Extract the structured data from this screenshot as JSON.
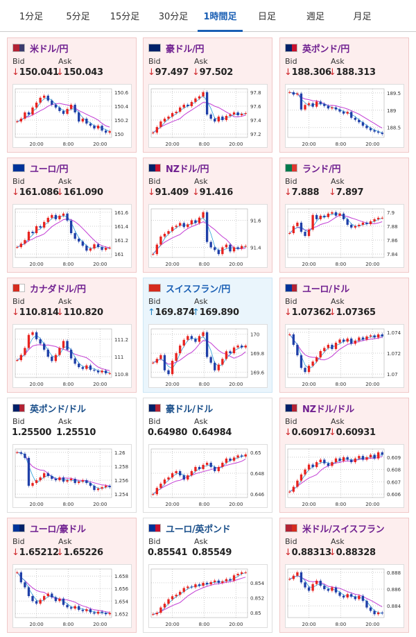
{
  "tabs": [
    "1分足",
    "5分足",
    "15分足",
    "30分足",
    "1時間足",
    "日足",
    "週足",
    "月足"
  ],
  "active_tab": "1時間足",
  "labels": {
    "bid": "Bid",
    "ask": "Ask"
  },
  "arrows": {
    "down": "↓",
    "up": "↑"
  },
  "colors": {
    "down_name": "#702090",
    "up_name": "#1a5fb4",
    "bull": "#e8231f",
    "bear": "#1f3fa8",
    "ma_fast": "#2a9fd8",
    "ma_slow": "#c23cd4",
    "grid": "#cccccc"
  },
  "pairs": [
    {
      "name": "米ドル/円",
      "bid": "150.041",
      "ask": "150.043",
      "dir": "down",
      "flag": "us",
      "ticks": [
        "150.6",
        "150.4",
        "150.2",
        "150"
      ]
    },
    {
      "name": "豪ドル/円",
      "bid": "97.497",
      "ask": "97.502",
      "dir": "down",
      "flag": "au",
      "ticks": [
        "97.8",
        "97.6",
        "97.4",
        "97.2"
      ]
    },
    {
      "name": "英ポンド/円",
      "bid": "188.306",
      "ask": "188.313",
      "dir": "down",
      "flag": "uk",
      "ticks": [
        "189.5",
        "189",
        "188.5"
      ]
    },
    {
      "name": "ユーロ/円",
      "bid": "161.086",
      "ask": "161.090",
      "dir": "down",
      "flag": "eu",
      "ticks": [
        "161.6",
        "161.4",
        "161.2",
        "161"
      ]
    },
    {
      "name": "NZドル/円",
      "bid": "91.409",
      "ask": "91.416",
      "dir": "down",
      "flag": "nz",
      "ticks": [
        "91.6",
        "91.4"
      ]
    },
    {
      "name": "ランド/円",
      "bid": "7.888",
      "ask": "7.897",
      "dir": "down",
      "flag": "za",
      "ticks": [
        "7.9",
        "7.88",
        "7.86",
        "7.84"
      ]
    },
    {
      "name": "カナダドル/円",
      "bid": "110.814",
      "ask": "110.820",
      "dir": "down",
      "flag": "ca",
      "ticks": [
        "111.2",
        "111",
        "110.8"
      ]
    },
    {
      "name": "スイスフラン/円",
      "bid": "169.874",
      "ask": "169.890",
      "dir": "up",
      "flag": "ch",
      "ticks": [
        "170",
        "169.8",
        "169.6"
      ]
    },
    {
      "name": "ユーロ/ドル",
      "bid": "1.07362",
      "ask": "1.07365",
      "dir": "down",
      "flag": "euus",
      "ticks": [
        "1.074",
        "1.072",
        "1.07"
      ]
    },
    {
      "name": "英ポンド/ドル",
      "bid": "1.25500",
      "ask": "1.25510",
      "dir": "flat",
      "flag": "ukus",
      "ticks": [
        "1.26",
        "1.258",
        "1.256",
        "1.254"
      ]
    },
    {
      "name": "豪ドル/ドル",
      "bid": "0.64980",
      "ask": "0.64984",
      "dir": "flat",
      "flag": "auus",
      "ticks": [
        "0.65",
        "0.648",
        "0.646"
      ]
    },
    {
      "name": "NZドル/ドル",
      "bid": "0.60917",
      "ask": "0.60931",
      "dir": "down",
      "flag": "nzus",
      "ticks": [
        "0.609",
        "0.608",
        "0.607",
        "0.606"
      ]
    },
    {
      "name": "ユーロ/豪ドル",
      "bid": "1.65212",
      "ask": "1.65226",
      "dir": "down",
      "flag": "euau",
      "ticks": [
        "1.658",
        "1.656",
        "1.654",
        "1.652"
      ]
    },
    {
      "name": "ユーロ/英ポンド",
      "bid": "0.85541",
      "ask": "0.85549",
      "dir": "flat",
      "flag": "euuk",
      "ticks": [
        "0.854",
        "0.852",
        "0.85"
      ]
    },
    {
      "name": "米ドル/スイスフラン",
      "bid": "0.88313",
      "ask": "0.88328",
      "dir": "down",
      "flag": "usch",
      "ticks": [
        "0.888",
        "0.886",
        "0.884"
      ]
    }
  ],
  "x_ticks": [
    "20:00",
    "8:00",
    "20:00"
  ],
  "chart_data": {
    "type": "candlestick",
    "x_ticks": [
      "20:00",
      "8:00",
      "20:00"
    ],
    "series": [
      {
        "pair": "米ドル/円",
        "close": [
          150.18,
          150.22,
          150.31,
          150.28,
          150.38,
          150.45,
          150.52,
          150.55,
          150.48,
          150.42,
          150.38,
          150.33,
          150.29,
          150.36,
          150.42,
          150.31,
          150.18,
          150.22,
          150.15,
          150.12,
          150.08,
          150.12,
          150.05,
          150.02,
          150.04
        ]
      },
      {
        "pair": "豪ドル/円",
        "close": [
          97.22,
          97.3,
          97.38,
          97.42,
          97.45,
          97.5,
          97.52,
          97.58,
          97.62,
          97.6,
          97.66,
          97.71,
          97.74,
          97.8,
          97.48,
          97.42,
          97.38,
          97.45,
          97.4,
          97.46,
          97.48,
          97.51,
          97.47,
          97.49,
          97.5
        ]
      },
      {
        "pair": "英ポンド/円",
        "close": [
          189.52,
          189.45,
          189.48,
          189.02,
          189.15,
          189.2,
          189.1,
          189.25,
          189.18,
          189.12,
          189.05,
          189.08,
          189.02,
          188.96,
          188.9,
          188.95,
          188.78,
          188.72,
          188.65,
          188.55,
          188.48,
          188.42,
          188.38,
          188.35,
          188.31
        ]
      },
      {
        "pair": "ユーロ/円",
        "close": [
          161.1,
          161.15,
          161.2,
          161.32,
          161.3,
          161.4,
          161.38,
          161.46,
          161.52,
          161.56,
          161.5,
          161.55,
          161.58,
          161.48,
          161.3,
          161.22,
          161.18,
          161.12,
          161.05,
          161.08,
          161.14,
          161.1,
          161.06,
          161.09,
          161.09
        ]
      },
      {
        "pair": "NZドル/円",
        "close": [
          91.35,
          91.42,
          91.48,
          91.5,
          91.52,
          91.55,
          91.56,
          91.58,
          91.55,
          91.57,
          91.6,
          91.58,
          91.62,
          91.66,
          91.44,
          91.4,
          91.38,
          91.35,
          91.4,
          91.42,
          91.37,
          91.4,
          91.39,
          91.41,
          91.41
        ]
      },
      {
        "pair": "ランド/円",
        "close": [
          7.87,
          7.88,
          7.885,
          7.872,
          7.866,
          7.875,
          7.896,
          7.89,
          7.895,
          7.893,
          7.898,
          7.9,
          7.895,
          7.898,
          7.89,
          7.882,
          7.878,
          7.88,
          7.882,
          7.885,
          7.883,
          7.887,
          7.89,
          7.892,
          7.892
        ]
      },
      {
        "pair": "カナダドル/円",
        "close": [
          110.96,
          111.02,
          111.1,
          111.25,
          111.28,
          111.2,
          111.15,
          111.08,
          111.0,
          110.95,
          111.02,
          111.1,
          111.18,
          111.08,
          110.98,
          110.92,
          110.88,
          110.86,
          110.9,
          110.85,
          110.84,
          110.82,
          110.84,
          110.81,
          110.81
        ]
      },
      {
        "pair": "スイスフラン/円",
        "close": [
          169.7,
          169.74,
          169.78,
          169.62,
          169.58,
          169.72,
          169.8,
          169.88,
          169.94,
          169.98,
          169.95,
          169.92,
          169.98,
          170.02,
          169.76,
          169.7,
          169.62,
          169.68,
          169.74,
          169.82,
          169.8,
          169.86,
          169.88,
          169.86,
          169.88
        ]
      },
      {
        "pair": "ユーロ/ドル",
        "close": [
          1.0738,
          1.0728,
          1.0718,
          1.0706,
          1.0702,
          1.0708,
          1.0712,
          1.0716,
          1.0722,
          1.0725,
          1.0728,
          1.0724,
          1.073,
          1.0733,
          1.0731,
          1.0734,
          1.0729,
          1.0732,
          1.0735,
          1.0733,
          1.0736,
          1.0737,
          1.0735,
          1.0738,
          1.0736
        ]
      },
      {
        "pair": "英ポンド/ドル",
        "close": [
          1.26,
          1.2598,
          1.2592,
          1.2552,
          1.2556,
          1.256,
          1.2564,
          1.257,
          1.2566,
          1.2562,
          1.256,
          1.2564,
          1.2558,
          1.256,
          1.2562,
          1.2556,
          1.2558,
          1.256,
          1.2556,
          1.2552,
          1.2546,
          1.2548,
          1.255,
          1.2552,
          1.255
        ]
      },
      {
        "pair": "豪ドル/ドル",
        "close": [
          0.646,
          0.6466,
          0.647,
          0.6474,
          0.6476,
          0.648,
          0.6482,
          0.6478,
          0.6474,
          0.6478,
          0.6482,
          0.6486,
          0.6484,
          0.6488,
          0.649,
          0.6486,
          0.6482,
          0.6486,
          0.649,
          0.6494,
          0.6492,
          0.6495,
          0.6497,
          0.6496,
          0.6498
        ]
      },
      {
        "pair": "NZドル/ドル",
        "close": [
          0.6062,
          0.6066,
          0.6071,
          0.6076,
          0.608,
          0.6084,
          0.6082,
          0.6086,
          0.6088,
          0.6085,
          0.6083,
          0.6086,
          0.6089,
          0.6087,
          0.609,
          0.6088,
          0.6086,
          0.6089,
          0.6091,
          0.6088,
          0.609,
          0.6092,
          0.6089,
          0.6094,
          0.6092
        ]
      },
      {
        "pair": "ユーロ/豪ドル",
        "close": [
          1.6586,
          1.657,
          1.6562,
          1.6548,
          1.654,
          1.6536,
          1.6542,
          1.6548,
          1.6552,
          1.6546,
          1.654,
          1.6544,
          1.6534,
          1.653,
          1.6528,
          1.6532,
          1.6526,
          1.6524,
          1.6527,
          1.6522,
          1.652,
          1.6523,
          1.6521,
          1.6519,
          1.6521
        ]
      },
      {
        "pair": "ユーロ/英ポンド",
        "close": [
          0.8498,
          0.85,
          0.8507,
          0.8512,
          0.8518,
          0.8522,
          0.8524,
          0.8528,
          0.8533,
          0.8535,
          0.8534,
          0.8538,
          0.8536,
          0.854,
          0.8538,
          0.8541,
          0.8543,
          0.854,
          0.8542,
          0.8545,
          0.8543,
          0.855,
          0.8552,
          0.8554,
          0.8554
        ]
      },
      {
        "pair": "米ドル/スイスフラン",
        "close": [
          0.8872,
          0.8876,
          0.888,
          0.8868,
          0.8862,
          0.8858,
          0.8866,
          0.887,
          0.8864,
          0.886,
          0.8858,
          0.8862,
          0.8856,
          0.8852,
          0.885,
          0.8854,
          0.8851,
          0.8848,
          0.8852,
          0.8846,
          0.8838,
          0.8834,
          0.883,
          0.8832,
          0.8831
        ]
      }
    ]
  }
}
